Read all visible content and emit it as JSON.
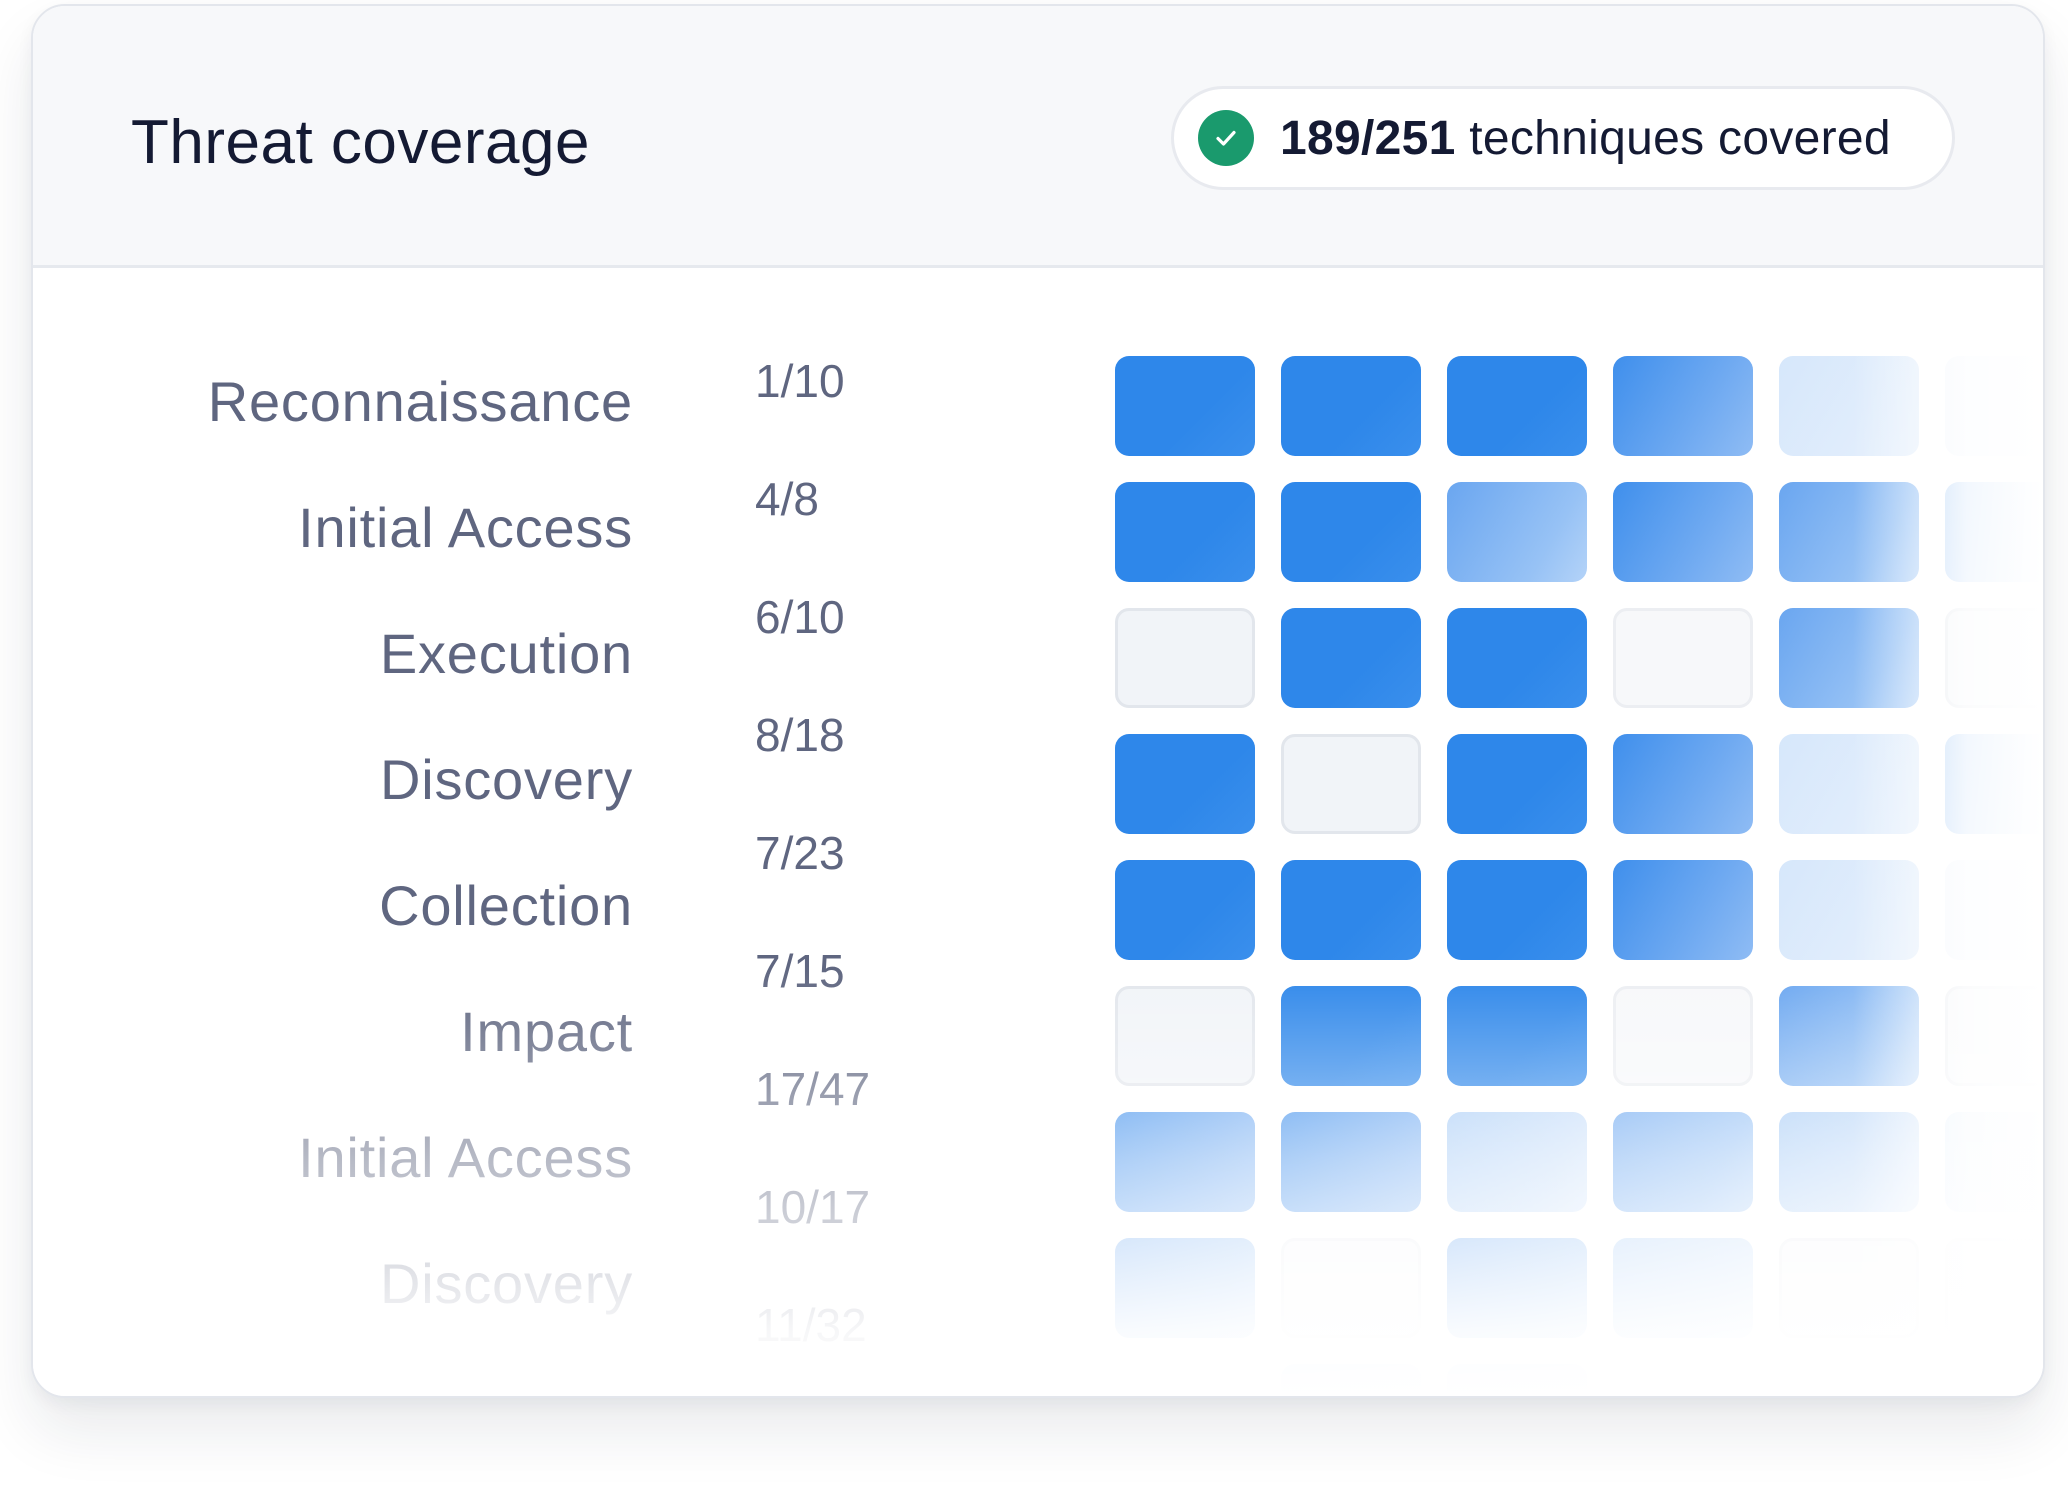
{
  "header": {
    "title": "Threat coverage",
    "badge": {
      "icon": "check-circle-icon",
      "icon_color": "#1a9a6d",
      "count": "189/251",
      "text": "techniques covered"
    }
  },
  "colors": {
    "full": "#2e87ea",
    "text_primary": "#141a33",
    "text_secondary": "#5f6680"
  },
  "tactics": [
    {
      "name": "Reconnaissance",
      "count": "1/10",
      "cells": [
        "full",
        "full",
        "full",
        "g80",
        "g20",
        "g10"
      ]
    },
    {
      "name": "Initial Access",
      "count": "4/8",
      "cells": [
        "full",
        "full",
        "g60",
        "g80",
        "g60",
        "g40"
      ]
    },
    {
      "name": "Execution",
      "count": "6/10",
      "cells": [
        "empty",
        "full",
        "full",
        "empty2",
        "g60",
        "empty"
      ]
    },
    {
      "name": "Discovery",
      "count": "8/18",
      "cells": [
        "full",
        "empty",
        "full",
        "g80",
        "g20",
        "g40"
      ]
    },
    {
      "name": "Collection",
      "count": "7/23",
      "cells": [
        "full",
        "full",
        "full",
        "g80",
        "g20",
        "g10"
      ]
    },
    {
      "name": "Impact",
      "count": "7/15",
      "cells": [
        "empty",
        "full",
        "full",
        "empty2",
        "g60",
        "empty"
      ]
    },
    {
      "name": "Initial Access",
      "count": "17/47",
      "cells": [
        "g80",
        "g80",
        "g40",
        "g60",
        "g40",
        "g20"
      ]
    },
    {
      "name": "Discovery",
      "count": "10/17",
      "cells": [
        "g60",
        "empty2",
        "g60",
        "g40",
        "empty2",
        "empty2"
      ]
    },
    {
      "name": "",
      "count": "11/32",
      "cells": [
        "",
        "g40",
        "g40",
        "",
        "",
        ""
      ]
    }
  ]
}
